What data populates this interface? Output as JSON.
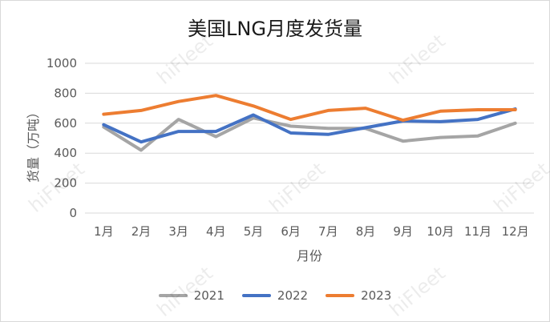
{
  "watermark": "hiFleet",
  "chart_data": {
    "type": "line",
    "title": "美国LNG月度发货量",
    "xlabel": "月份",
    "ylabel": "货量（万吨）",
    "categories": [
      "1月",
      "2月",
      "3月",
      "4月",
      "5月",
      "6月",
      "7月",
      "8月",
      "9月",
      "10月",
      "11月",
      "12月"
    ],
    "ylim": [
      0,
      1000
    ],
    "yticks": [
      0,
      200,
      400,
      600,
      800,
      1000
    ],
    "grid": true,
    "legend_position": "bottom",
    "series": [
      {
        "name": "2021",
        "color": "#a5a5a5",
        "values": [
          575,
          420,
          625,
          510,
          635,
          580,
          565,
          565,
          480,
          505,
          515,
          600
        ]
      },
      {
        "name": "2022",
        "color": "#4472c4",
        "values": [
          590,
          475,
          545,
          545,
          655,
          535,
          525,
          570,
          615,
          610,
          625,
          695
        ]
      },
      {
        "name": "2023",
        "color": "#ed7d31",
        "values": [
          660,
          685,
          745,
          785,
          715,
          625,
          685,
          700,
          620,
          680,
          690,
          690
        ]
      }
    ]
  }
}
